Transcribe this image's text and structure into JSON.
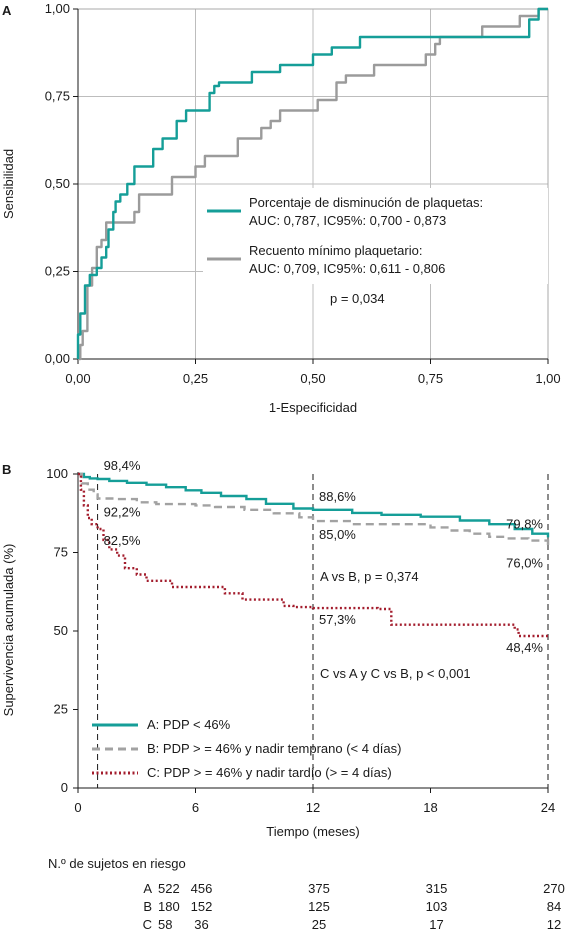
{
  "chart_data": [
    {
      "type": "line",
      "panel_label": "A",
      "xlabel": "1-Especificidad",
      "ylabel": "Sensibilidad",
      "xlim": [
        0,
        1
      ],
      "ylim": [
        0,
        1
      ],
      "x_ticks": [
        "0,00",
        "0,25",
        "0,50",
        "0,75",
        "1,00"
      ],
      "y_ticks": [
        "0,00",
        "0,25",
        "0,50",
        "0,75",
        "1,00"
      ],
      "grid": true,
      "legend_position": "center-right",
      "series": [
        {
          "name": "Porcentaje de disminución de plaquetas:",
          "subtitle": "AUC: 0,787, IC95%: 0,700 - 0,873",
          "color": "#159e98",
          "style": "solid",
          "points": [
            [
              0,
              0
            ],
            [
              0,
              0.07
            ],
            [
              0.005,
              0.13
            ],
            [
              0.015,
              0.21
            ],
            [
              0.025,
              0.21
            ],
            [
              0.025,
              0.24
            ],
            [
              0.04,
              0.26
            ],
            [
              0.05,
              0.29
            ],
            [
              0.06,
              0.32
            ],
            [
              0.065,
              0.37
            ],
            [
              0.075,
              0.42
            ],
            [
              0.08,
              0.45
            ],
            [
              0.09,
              0.47
            ],
            [
              0.105,
              0.5
            ],
            [
              0.12,
              0.55
            ],
            [
              0.15,
              0.55
            ],
            [
              0.16,
              0.6
            ],
            [
              0.18,
              0.63
            ],
            [
              0.21,
              0.68
            ],
            [
              0.23,
              0.71
            ],
            [
              0.26,
              0.71
            ],
            [
              0.28,
              0.76
            ],
            [
              0.29,
              0.78
            ],
            [
              0.3,
              0.79
            ],
            [
              0.35,
              0.79
            ],
            [
              0.37,
              0.82
            ],
            [
              0.4,
              0.82
            ],
            [
              0.43,
              0.84
            ],
            [
              0.45,
              0.84
            ],
            [
              0.5,
              0.87
            ],
            [
              0.54,
              0.89
            ],
            [
              0.58,
              0.89
            ],
            [
              0.6,
              0.92
            ],
            [
              0.95,
              0.92
            ],
            [
              0.96,
              0.97
            ],
            [
              0.97,
              0.97
            ],
            [
              0.98,
              1
            ],
            [
              1,
              1
            ]
          ]
        },
        {
          "name": "Recuento mínimo plaquetario:",
          "subtitle": "AUC: 0,709, IC95%: 0,611 - 0,806",
          "color": "#9b9b9b",
          "style": "solid",
          "points": [
            [
              0,
              0
            ],
            [
              0.005,
              0.04
            ],
            [
              0.01,
              0.08
            ],
            [
              0.02,
              0.13
            ],
            [
              0.02,
              0.21
            ],
            [
              0.03,
              0.26
            ],
            [
              0.04,
              0.32
            ],
            [
              0.05,
              0.34
            ],
            [
              0.06,
              0.39
            ],
            [
              0.11,
              0.39
            ],
            [
              0.12,
              0.42
            ],
            [
              0.13,
              0.47
            ],
            [
              0.18,
              0.47
            ],
            [
              0.2,
              0.52
            ],
            [
              0.24,
              0.52
            ],
            [
              0.25,
              0.55
            ],
            [
              0.27,
              0.58
            ],
            [
              0.32,
              0.58
            ],
            [
              0.34,
              0.63
            ],
            [
              0.38,
              0.63
            ],
            [
              0.39,
              0.66
            ],
            [
              0.41,
              0.66
            ],
            [
              0.41,
              0.68
            ],
            [
              0.43,
              0.71
            ],
            [
              0.5,
              0.71
            ],
            [
              0.51,
              0.74
            ],
            [
              0.53,
              0.74
            ],
            [
              0.55,
              0.79
            ],
            [
              0.57,
              0.81
            ],
            [
              0.6,
              0.81
            ],
            [
              0.63,
              0.84
            ],
            [
              0.73,
              0.84
            ],
            [
              0.74,
              0.87
            ],
            [
              0.76,
              0.9
            ],
            [
              0.77,
              0.92
            ],
            [
              0.85,
              0.92
            ],
            [
              0.86,
              0.95
            ],
            [
              0.94,
              0.95
            ],
            [
              0.94,
              0.98
            ],
            [
              0.98,
              0.98
            ],
            [
              0.98,
              1
            ],
            [
              1,
              1
            ]
          ]
        }
      ],
      "annotations": [
        "p = 0,034"
      ]
    },
    {
      "type": "line",
      "panel_label": "B",
      "xlabel": "Tiempo (meses)",
      "ylabel": "Supervivencia acumulada (%)",
      "xlim": [
        0,
        24
      ],
      "ylim": [
        0,
        100
      ],
      "x_ticks": [
        "0",
        "6",
        "12",
        "18",
        "24"
      ],
      "y_ticks": [
        "0",
        "25",
        "50",
        "75",
        "100"
      ],
      "grid": false,
      "legend_position": "bottom-left",
      "series": [
        {
          "name": "A: PDP < 46%",
          "color": "#159e98",
          "style": "solid",
          "points": [
            [
              0,
              100
            ],
            [
              0.3,
              99
            ],
            [
              0.6,
              98.6
            ],
            [
              1,
              98.4
            ],
            [
              1.6,
              97.8
            ],
            [
              2.5,
              97.2
            ],
            [
              3.5,
              96.6
            ],
            [
              4.5,
              95.8
            ],
            [
              5.5,
              94.8
            ],
            [
              6.3,
              94
            ],
            [
              7.3,
              93
            ],
            [
              8.6,
              92
            ],
            [
              9.6,
              90.5
            ],
            [
              11,
              89
            ],
            [
              12,
              88.6
            ],
            [
              14,
              87.6
            ],
            [
              15.5,
              87
            ],
            [
              17.5,
              86.4
            ],
            [
              19.5,
              85.2
            ],
            [
              21,
              84
            ],
            [
              22.3,
              82.5
            ],
            [
              23.2,
              81
            ],
            [
              24,
              79.8
            ]
          ]
        },
        {
          "name": "B: PDP > = 46% y nadir temprano (< 4 días)",
          "color": "#a2a2a2",
          "style": "dashed",
          "points": [
            [
              0,
              100
            ],
            [
              0.2,
              97
            ],
            [
              0.5,
              95
            ],
            [
              0.8,
              93.5
            ],
            [
              1,
              92.2
            ],
            [
              2,
              92
            ],
            [
              3,
              91
            ],
            [
              4,
              90.4
            ],
            [
              6,
              90
            ],
            [
              7,
              89.5
            ],
            [
              8.5,
              88.6
            ],
            [
              10,
              87.5
            ],
            [
              11.3,
              86.2
            ],
            [
              12,
              85
            ],
            [
              13.8,
              85
            ],
            [
              14,
              84
            ],
            [
              17,
              84
            ],
            [
              18,
              83
            ],
            [
              19,
              82
            ],
            [
              20,
              81
            ],
            [
              21,
              80
            ],
            [
              22,
              79.5
            ],
            [
              23,
              78.8
            ],
            [
              24,
              76
            ]
          ]
        },
        {
          "name": "C: PDP > = 46% y nadir tardío (> = 4 días)",
          "color": "#a31d2d",
          "style": "dotted",
          "points": [
            [
              0,
              100
            ],
            [
              0.15,
              95
            ],
            [
              0.3,
              90
            ],
            [
              0.5,
              86
            ],
            [
              0.7,
              84
            ],
            [
              1,
              82.5
            ],
            [
              1.3,
              79
            ],
            [
              1.6,
              76
            ],
            [
              2,
              74
            ],
            [
              2.4,
              70
            ],
            [
              3,
              68
            ],
            [
              3.5,
              66
            ],
            [
              4.8,
              64
            ],
            [
              7.5,
              62
            ],
            [
              8.4,
              60
            ],
            [
              10.5,
              58
            ],
            [
              11,
              57.6
            ],
            [
              12,
              57.3
            ],
            [
              15.3,
              57
            ],
            [
              16,
              52
            ],
            [
              22,
              52
            ],
            [
              22.3,
              50.5
            ],
            [
              22.5,
              48.4
            ],
            [
              24,
              48.4
            ]
          ]
        }
      ],
      "point_labels": [
        {
          "text": "98,4%",
          "series": "A",
          "x": 1,
          "y": 98.4
        },
        {
          "text": "92,2%",
          "series": "B",
          "x": 1,
          "y": 92.2
        },
        {
          "text": "82,5%",
          "series": "C",
          "x": 1,
          "y": 82.5
        },
        {
          "text": "88,6%",
          "series": "A",
          "x": 12,
          "y": 88.6
        },
        {
          "text": "85,0%",
          "series": "B",
          "x": 12,
          "y": 85.0
        },
        {
          "text": "57,3%",
          "series": "C",
          "x": 12,
          "y": 57.3
        },
        {
          "text": "79,8%",
          "series": "A",
          "x": 24,
          "y": 79.8
        },
        {
          "text": "76,0%",
          "series": "B",
          "x": 24,
          "y": 76.0
        },
        {
          "text": "48,4%",
          "series": "C",
          "x": 24,
          "y": 48.4
        }
      ],
      "annotations": [
        "A vs B, p = 0,374",
        "C vs A y C vs B, p < 0,001"
      ],
      "reference_lines_x": [
        1,
        12,
        24
      ],
      "risk_table": {
        "title": "N.º de sujetos en riesgo",
        "times": [
          0,
          6,
          12,
          18,
          24
        ],
        "rows": [
          {
            "group": "A",
            "values": [
              "522",
              "456",
              "375",
              "315",
              "270"
            ]
          },
          {
            "group": "B",
            "values": [
              "180",
              "152",
              "125",
              "103",
              "84"
            ]
          },
          {
            "group": "C",
            "values": [
              "58",
              "36",
              "25",
              "17",
              "12"
            ]
          }
        ]
      }
    }
  ]
}
